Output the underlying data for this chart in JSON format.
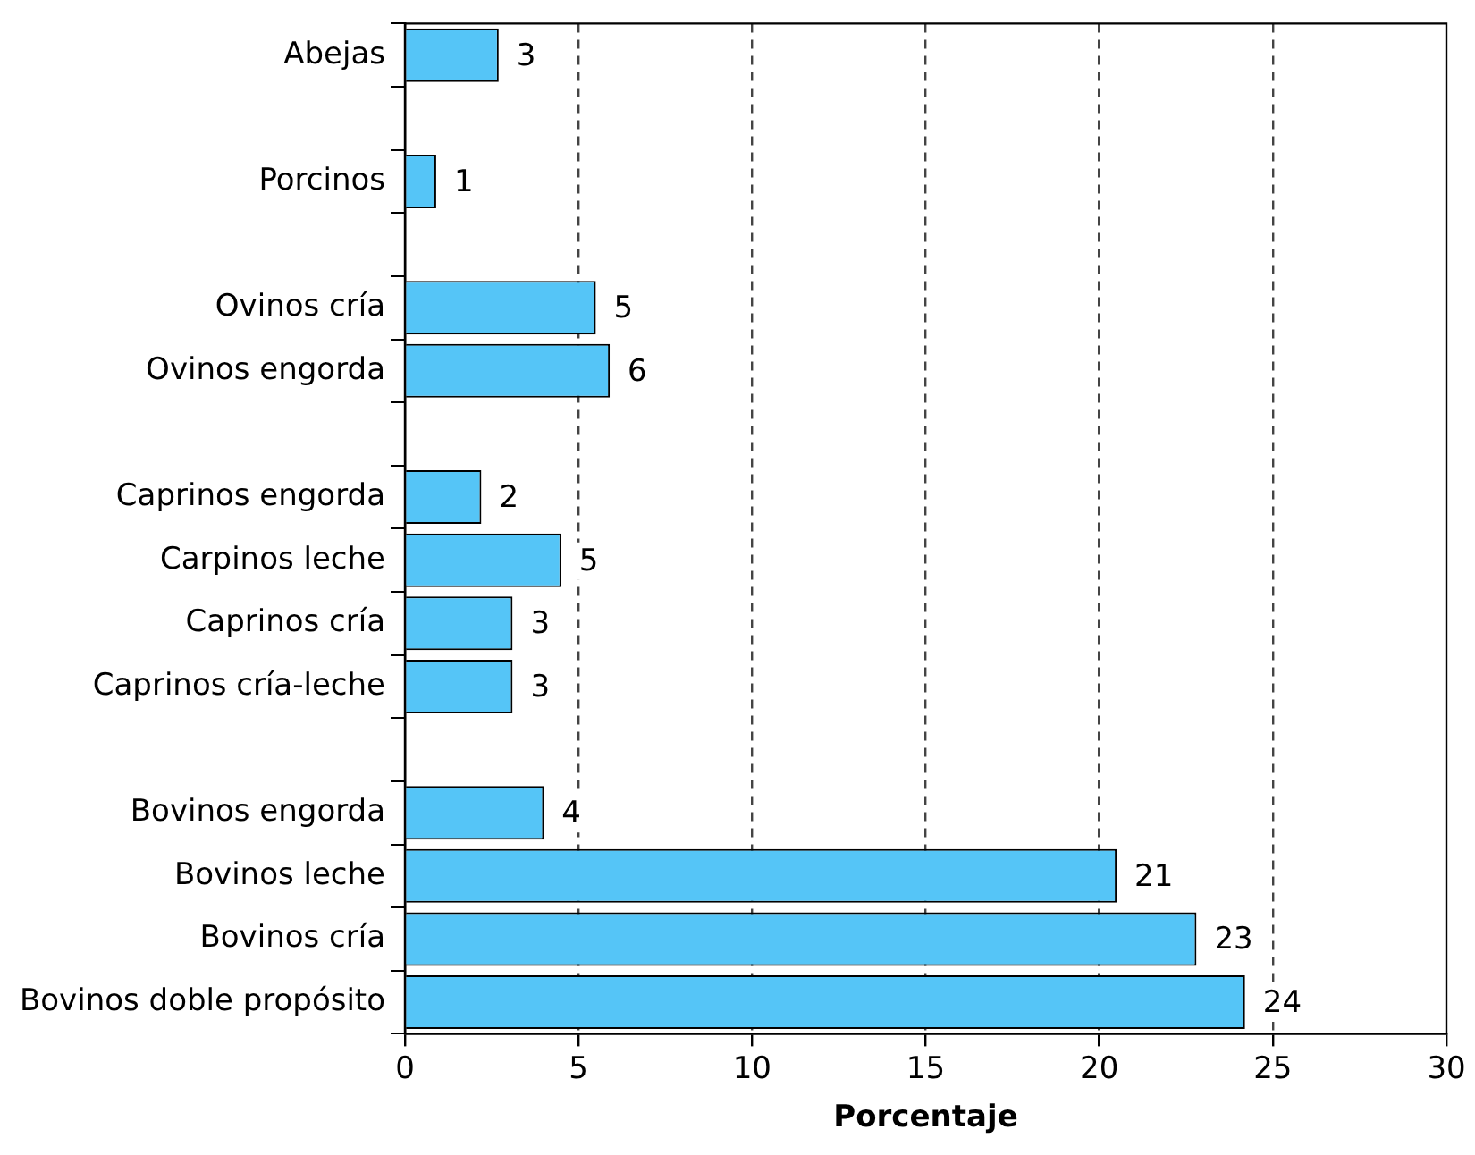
{
  "chart_data": {
    "type": "bar",
    "orientation": "horizontal",
    "xlabel": "Porcentaje",
    "categories": [
      "Abejas",
      null,
      "Porcinos",
      null,
      "Ovinos cría",
      "Ovinos engorda",
      null,
      "Caprinos engorda",
      "Carpinos leche",
      "Caprinos cría",
      "Caprinos cría-leche",
      null,
      "Bovinos engorda",
      "Bovinos leche",
      "Bovinos cría",
      "Bovinos doble propósito"
    ],
    "values": [
      2.7,
      null,
      0.9,
      null,
      5.5,
      5.9,
      null,
      2.2,
      4.5,
      3.1,
      3.1,
      null,
      4.0,
      20.5,
      22.8,
      24.2
    ],
    "value_labels": [
      "3",
      null,
      "1",
      null,
      "5",
      "6",
      null,
      "2",
      "5",
      "3",
      "3",
      null,
      "4",
      "21",
      "23",
      "24"
    ],
    "color": "#55c5f7",
    "xlim": [
      0,
      30
    ],
    "xticks": [
      0,
      5,
      10,
      15,
      20,
      25,
      30
    ],
    "grid": "x",
    "legend": false
  }
}
